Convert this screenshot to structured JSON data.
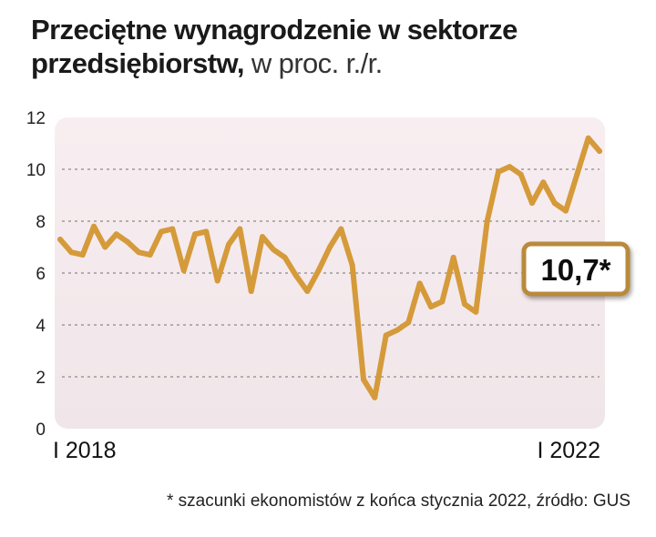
{
  "title": {
    "bold": "Przeciętne wynagrodzenie w sektorze przedsiębiorstw,",
    "light": "w proc. r./r."
  },
  "footnote": "* szacunki ekonomistów z końca stycznia 2022, źródło: GUS",
  "colors": {
    "line": "#d59a3a",
    "panel_top": "#f8eef1",
    "panel_bottom": "#f0e6e9",
    "grid": "#8a8a8a",
    "callout_border": "#b98a3e"
  },
  "chart_data": {
    "type": "line",
    "title": "Przeciętne wynagrodzenie w sektorze przedsiębiorstw, w proc. r./r.",
    "xlabel": "",
    "ylabel": "",
    "ylim": [
      0,
      12
    ],
    "yticks": [
      0,
      2,
      4,
      6,
      8,
      10,
      12
    ],
    "grid": true,
    "xtick_labels": [
      {
        "index": 0,
        "label": "I 2018"
      },
      {
        "index": 48,
        "label": "I 2022"
      }
    ],
    "callout": {
      "label": "10,7*",
      "index": 48,
      "value": 10.7
    },
    "series": [
      {
        "name": "wynagrodzenie r./r.",
        "values": [
          7.3,
          6.8,
          6.7,
          7.8,
          7.0,
          7.5,
          7.2,
          6.8,
          6.7,
          7.6,
          7.7,
          6.1,
          7.5,
          7.6,
          5.7,
          7.1,
          7.7,
          5.3,
          7.4,
          6.9,
          6.6,
          5.9,
          5.3,
          6.1,
          7.0,
          7.7,
          6.3,
          1.9,
          1.2,
          3.6,
          3.8,
          4.1,
          5.6,
          4.7,
          4.9,
          6.6,
          4.8,
          4.5,
          8.0,
          9.9,
          10.1,
          9.8,
          8.7,
          9.5,
          8.7,
          8.4,
          9.8,
          11.2,
          10.7
        ]
      }
    ]
  }
}
